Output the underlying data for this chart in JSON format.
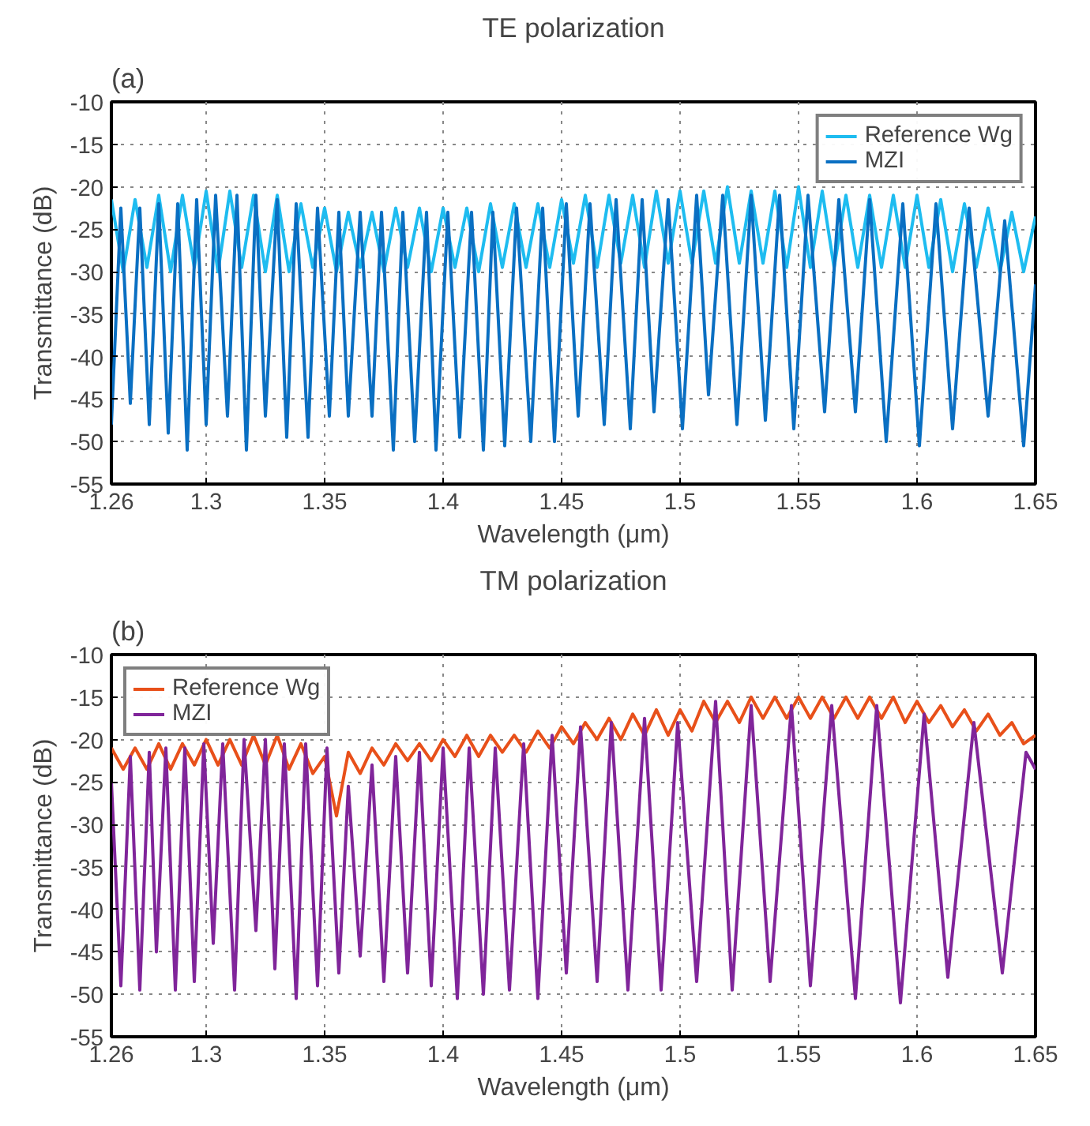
{
  "chart_data": [
    {
      "type": "line",
      "title": "TE polarization",
      "xlabel": "Wavelength (μm)",
      "ylabel": "Transmittance (dB)",
      "annotations": [
        "(a)"
      ],
      "xlim": [
        1.26,
        1.65
      ],
      "xticks": [
        1.26,
        1.3,
        1.35,
        1.4,
        1.45,
        1.5,
        1.55,
        1.6,
        1.65
      ],
      "ylim": [
        -55,
        -10
      ],
      "yticks": [
        -55,
        -50,
        -45,
        -40,
        -35,
        -30,
        -25,
        -20,
        -15,
        -10
      ],
      "grid": true,
      "legend": "top right",
      "line_style": "solid",
      "series": [
        {
          "name": "Reference Wg",
          "color": "#1ebcf0",
          "x": [
            1.26,
            1.265,
            1.27,
            1.275,
            1.28,
            1.285,
            1.29,
            1.295,
            1.3,
            1.305,
            1.31,
            1.315,
            1.32,
            1.325,
            1.33,
            1.335,
            1.34,
            1.345,
            1.35,
            1.355,
            1.36,
            1.365,
            1.37,
            1.375,
            1.38,
            1.385,
            1.39,
            1.395,
            1.4,
            1.405,
            1.41,
            1.415,
            1.42,
            1.425,
            1.43,
            1.435,
            1.44,
            1.445,
            1.45,
            1.455,
            1.46,
            1.465,
            1.47,
            1.475,
            1.48,
            1.485,
            1.49,
            1.495,
            1.5,
            1.505,
            1.51,
            1.515,
            1.52,
            1.525,
            1.53,
            1.535,
            1.54,
            1.545,
            1.55,
            1.555,
            1.56,
            1.565,
            1.57,
            1.575,
            1.58,
            1.585,
            1.59,
            1.595,
            1.6,
            1.605,
            1.61,
            1.615,
            1.62,
            1.625,
            1.63,
            1.635,
            1.64,
            1.645,
            1.65
          ],
          "values": [
            -21.5,
            -30,
            -21.5,
            -29.5,
            -21,
            -30,
            -21,
            -29.5,
            -20.5,
            -30,
            -20.5,
            -29.5,
            -21,
            -30,
            -21,
            -30,
            -22,
            -29.5,
            -22.5,
            -30,
            -23,
            -29.5,
            -23,
            -30,
            -22.5,
            -29.5,
            -22.5,
            -30,
            -22.5,
            -29.5,
            -22.5,
            -30,
            -22,
            -29.5,
            -22,
            -29.5,
            -22,
            -29.5,
            -21.5,
            -29,
            -21,
            -29.5,
            -21,
            -29,
            -21,
            -29.5,
            -20.5,
            -29,
            -20.5,
            -29,
            -20.5,
            -29,
            -20,
            -29,
            -20.5,
            -29,
            -20.5,
            -29.5,
            -20,
            -29.5,
            -20.5,
            -29.5,
            -21,
            -29.5,
            -21,
            -29.5,
            -21,
            -29.5,
            -21,
            -29.5,
            -21.5,
            -30,
            -22,
            -29.5,
            -22.5,
            -30,
            -23,
            -30,
            -23.5
          ]
        },
        {
          "name": "MZI",
          "color": "#0a6fc2",
          "x": [
            1.26,
            1.264,
            1.268,
            1.272,
            1.276,
            1.28,
            1.284,
            1.288,
            1.292,
            1.296,
            1.3,
            1.304,
            1.309,
            1.313,
            1.317,
            1.321,
            1.325,
            1.33,
            1.334,
            1.338,
            1.343,
            1.347,
            1.352,
            1.356,
            1.36,
            1.365,
            1.37,
            1.374,
            1.379,
            1.383,
            1.388,
            1.393,
            1.397,
            1.402,
            1.407,
            1.412,
            1.417,
            1.421,
            1.426,
            1.431,
            1.437,
            1.442,
            1.447,
            1.452,
            1.457,
            1.462,
            1.468,
            1.473,
            1.479,
            1.484,
            1.489,
            1.495,
            1.501,
            1.507,
            1.512,
            1.518,
            1.524,
            1.53,
            1.536,
            1.542,
            1.548,
            1.554,
            1.561,
            1.567,
            1.574,
            1.58,
            1.587,
            1.594,
            1.601,
            1.608,
            1.615,
            1.622,
            1.63,
            1.637,
            1.645,
            1.65
          ],
          "values": [
            -48,
            -22.5,
            -45.5,
            -22.5,
            -48,
            -22,
            -49,
            -22,
            -51,
            -21.5,
            -48,
            -21,
            -47,
            -21,
            -51,
            -21,
            -47,
            -21.5,
            -49.5,
            -22,
            -49.5,
            -22.5,
            -47,
            -23,
            -47,
            -23,
            -47,
            -23,
            -51,
            -23,
            -50,
            -23,
            -51,
            -23,
            -49.5,
            -23,
            -51,
            -23,
            -50.5,
            -22.5,
            -50,
            -22.5,
            -50,
            -22,
            -47,
            -22,
            -48,
            -21.5,
            -48.5,
            -21.5,
            -46.5,
            -21.5,
            -48.5,
            -21,
            -44.5,
            -21,
            -48,
            -21,
            -47.5,
            -21,
            -48.5,
            -21,
            -46.5,
            -21.5,
            -46.5,
            -21.5,
            -50,
            -22,
            -50.5,
            -22,
            -48.5,
            -22.5,
            -47,
            -24,
            -50.5,
            -31.5
          ]
        }
      ]
    },
    {
      "type": "line",
      "title": "TM polarization",
      "xlabel": "Wavelength (μm)",
      "ylabel": "Transmittance (dB)",
      "annotations": [
        "(b)"
      ],
      "xlim": [
        1.26,
        1.65
      ],
      "xticks": [
        1.26,
        1.3,
        1.35,
        1.4,
        1.45,
        1.5,
        1.55,
        1.6,
        1.65
      ],
      "ylim": [
        -55,
        -10
      ],
      "yticks": [
        -55,
        -50,
        -45,
        -40,
        -35,
        -30,
        -25,
        -20,
        -15,
        -10
      ],
      "grid": true,
      "legend": "top left",
      "line_style": "solid",
      "series": [
        {
          "name": "Reference Wg",
          "color": "#e8501a",
          "x": [
            1.26,
            1.265,
            1.27,
            1.275,
            1.28,
            1.285,
            1.29,
            1.295,
            1.3,
            1.305,
            1.31,
            1.315,
            1.32,
            1.325,
            1.33,
            1.335,
            1.34,
            1.345,
            1.35,
            1.355,
            1.36,
            1.365,
            1.37,
            1.375,
            1.38,
            1.385,
            1.39,
            1.395,
            1.4,
            1.405,
            1.41,
            1.415,
            1.42,
            1.425,
            1.43,
            1.435,
            1.44,
            1.445,
            1.45,
            1.455,
            1.46,
            1.465,
            1.47,
            1.475,
            1.48,
            1.485,
            1.49,
            1.495,
            1.5,
            1.505,
            1.51,
            1.515,
            1.52,
            1.525,
            1.53,
            1.535,
            1.54,
            1.545,
            1.55,
            1.555,
            1.56,
            1.565,
            1.57,
            1.575,
            1.58,
            1.585,
            1.59,
            1.595,
            1.6,
            1.605,
            1.61,
            1.615,
            1.62,
            1.625,
            1.63,
            1.635,
            1.64,
            1.645,
            1.65
          ],
          "values": [
            -21,
            -23.5,
            -21,
            -23.5,
            -20.5,
            -23.5,
            -20.5,
            -23,
            -20,
            -23,
            -20,
            -23,
            -19.5,
            -23,
            -19.5,
            -23.5,
            -20.5,
            -24,
            -22,
            -29,
            -21.5,
            -24,
            -21,
            -23,
            -20.5,
            -22.5,
            -20.5,
            -22.5,
            -20,
            -22,
            -19.5,
            -22,
            -19.5,
            -21.5,
            -19.5,
            -21.5,
            -19,
            -21,
            -18.5,
            -20.5,
            -18,
            -20,
            -17.5,
            -20,
            -17,
            -19.5,
            -16.5,
            -19.5,
            -16.5,
            -19,
            -15.5,
            -18,
            -15.5,
            -18,
            -15,
            -17.5,
            -15,
            -17.5,
            -15,
            -17.5,
            -15,
            -17.5,
            -15,
            -17.5,
            -15,
            -17.5,
            -15,
            -18,
            -15.5,
            -18,
            -16,
            -18.5,
            -16.5,
            -19,
            -17,
            -19.5,
            -18,
            -20.5,
            -19.5
          ]
        },
        {
          "name": "MZI",
          "color": "#80259a",
          "x": [
            1.26,
            1.264,
            1.268,
            1.272,
            1.276,
            1.279,
            1.283,
            1.287,
            1.291,
            1.295,
            1.299,
            1.303,
            1.307,
            1.312,
            1.316,
            1.321,
            1.325,
            1.329,
            1.333,
            1.338,
            1.342,
            1.347,
            1.351,
            1.356,
            1.36,
            1.365,
            1.37,
            1.375,
            1.38,
            1.385,
            1.39,
            1.395,
            1.4,
            1.406,
            1.411,
            1.417,
            1.422,
            1.428,
            1.434,
            1.44,
            1.446,
            1.452,
            1.458,
            1.465,
            1.471,
            1.478,
            1.485,
            1.492,
            1.499,
            1.507,
            1.515,
            1.522,
            1.53,
            1.538,
            1.547,
            1.555,
            1.564,
            1.574,
            1.583,
            1.593,
            1.603,
            1.613,
            1.624,
            1.636,
            1.646,
            1.65
          ],
          "values": [
            -25,
            -49,
            -22,
            -49.5,
            -21.5,
            -45,
            -21,
            -49.5,
            -21,
            -48.5,
            -20.5,
            -44,
            -20.5,
            -49.5,
            -20,
            -42.5,
            -20,
            -47,
            -20.5,
            -50.5,
            -20.5,
            -49,
            -21,
            -47.5,
            -25.5,
            -45.5,
            -23,
            -48.5,
            -22,
            -47.5,
            -21.5,
            -49,
            -21,
            -50.5,
            -21,
            -50,
            -21,
            -49.5,
            -20.5,
            -50.5,
            -19.5,
            -47.5,
            -18.5,
            -48.5,
            -18,
            -49.5,
            -17.5,
            -49.5,
            -18,
            -48.5,
            -15.5,
            -49.5,
            -16,
            -48.5,
            -16,
            -49,
            -16,
            -50.5,
            -16,
            -51,
            -17,
            -48,
            -18,
            -47.5,
            -21.5,
            -23.5
          ]
        }
      ]
    }
  ]
}
